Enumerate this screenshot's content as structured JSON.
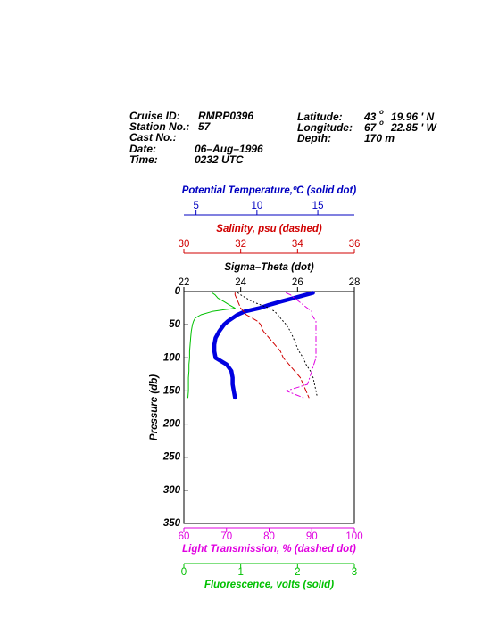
{
  "header": {
    "cruise_label": "Cruise ID:",
    "cruise": "RMRP0396",
    "station_label": "Station No.:",
    "station": "57",
    "cast_label": "Cast No.:",
    "date_label": "Date:",
    "date": "06–Aug–1996",
    "time_label": "Time:",
    "time": "0232 UTC",
    "lat_label": "Latitude:",
    "lat_deg": "43",
    "lat_sup": "o",
    "lat_min": "19.96 ' N",
    "lon_label": "Longitude:",
    "lon_deg": "67",
    "lon_sup": "o",
    "lon_min": "22.85 ' W",
    "depth_label": "Depth:",
    "depth": "170 m"
  },
  "chart_data": {
    "type": "line",
    "ylabel": "Pressure (db)",
    "ylim": [
      0,
      350
    ],
    "yticks": [
      0,
      50,
      100,
      150,
      200,
      250,
      300,
      350
    ],
    "y_reversed": true,
    "y": [
      2,
      5,
      10,
      15,
      20,
      25,
      30,
      35,
      40,
      45,
      50,
      60,
      70,
      80,
      90,
      100,
      110,
      120,
      130,
      140,
      150,
      160
    ],
    "x_axes": [
      {
        "label": "Potential Temperature,ºC (solid dot)",
        "xlim": [
          4,
          18
        ],
        "xticks": [
          5,
          10,
          15
        ],
        "color": "#0000c0",
        "side": "top"
      },
      {
        "label": "Salinity, psu  (dashed)",
        "xlim": [
          30,
          36
        ],
        "xticks": [
          30,
          32,
          34,
          36
        ],
        "color": "#d00000",
        "side": "top"
      },
      {
        "label": "Sigma–Theta (dot)",
        "xlim": [
          22,
          28
        ],
        "xticks": [
          22,
          24,
          26,
          28
        ],
        "color": "#000000",
        "side": "top"
      },
      {
        "label": "Light Transmission, % (dashed dot)",
        "xlim": [
          60,
          100
        ],
        "xticks": [
          60,
          70,
          80,
          90,
          100
        ],
        "color": "#e000e0",
        "side": "bottom"
      },
      {
        "label": "Fluorescence, volts (solid)",
        "xlim": [
          0,
          3
        ],
        "xticks": [
          0,
          1,
          2,
          3
        ],
        "color": "#00c000",
        "side": "bottom"
      }
    ],
    "series": [
      {
        "axis": 0,
        "color": "#0000e0",
        "style": "thick",
        "values": [
          14.6,
          14.0,
          13.0,
          12.0,
          11.0,
          10.2,
          9.0,
          8.4,
          8.0,
          7.6,
          7.3,
          6.9,
          6.6,
          6.5,
          6.5,
          6.6,
          7.5,
          7.9,
          8.0,
          8.0,
          8.1,
          8.2
        ]
      },
      {
        "axis": 1,
        "color": "#d00000",
        "style": "dashed",
        "values": [
          31.8,
          31.8,
          31.85,
          31.9,
          31.95,
          32.0,
          32.1,
          32.2,
          32.4,
          32.6,
          32.7,
          32.8,
          33.0,
          33.2,
          33.4,
          33.5,
          33.7,
          33.9,
          34.1,
          34.2,
          34.3,
          34.4
        ]
      },
      {
        "axis": 2,
        "color": "#000000",
        "style": "dotted",
        "values": [
          23.9,
          24.0,
          24.2,
          24.4,
          24.7,
          25.0,
          25.2,
          25.3,
          25.4,
          25.5,
          25.6,
          25.75,
          25.85,
          25.95,
          26.05,
          26.2,
          26.3,
          26.45,
          26.55,
          26.6,
          26.65,
          26.7
        ]
      },
      {
        "axis": 3,
        "color": "#e000e0",
        "style": "dashdot",
        "values": [
          84,
          85,
          86,
          87,
          88,
          89,
          90,
          90,
          90.5,
          91,
          91,
          91,
          91,
          91,
          91,
          91,
          90.5,
          90,
          89.5,
          89,
          84,
          88
        ]
      },
      {
        "axis": 4,
        "color": "#00c000",
        "style": "solid",
        "values": [
          0.5,
          0.55,
          0.6,
          0.7,
          0.8,
          0.9,
          0.5,
          0.3,
          0.2,
          0.17,
          0.15,
          0.13,
          0.12,
          0.11,
          0.1,
          0.1,
          0.09,
          0.09,
          0.08,
          0.08,
          0.08,
          0.07
        ]
      }
    ]
  }
}
